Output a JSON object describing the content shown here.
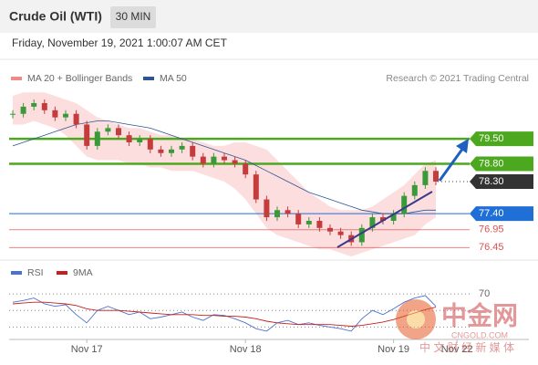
{
  "header": {
    "title": "Crude Oil (WTI)",
    "timeframe": "30 MIN",
    "timestamp": "Friday, November 19, 2021 1:00:07 AM CET"
  },
  "watermark": {
    "logo": "中金网",
    "site": "CNGOLD.COM",
    "tagline": "中 文 财 经 新 媒 体"
  },
  "chart_data": {
    "type": "candlestick",
    "credit": "Research © 2021 Trading Central",
    "categories": [
      null,
      null,
      null,
      null,
      null,
      null,
      null,
      "Nov 17",
      null,
      null,
      null,
      null,
      null,
      null,
      null,
      null,
      null,
      null,
      null,
      null,
      null,
      null,
      "Nov 18",
      null,
      null,
      null,
      null,
      null,
      null,
      null,
      null,
      null,
      null,
      null,
      null,
      null,
      "Nov 19",
      null,
      null,
      null,
      null,
      null,
      "Nov 22",
      null
    ],
    "up_color": "#3a9a3a",
    "down_color": "#c43c3c",
    "values": [
      80.2,
      80.4,
      80.5,
      80.3,
      80.1,
      80.2,
      79.9,
      79.3,
      79.7,
      79.8,
      79.6,
      79.4,
      79.5,
      79.2,
      79.1,
      79.2,
      79.3,
      79.0,
      78.8,
      79.0,
      78.9,
      78.8,
      78.5,
      77.8,
      77.3,
      77.5,
      77.4,
      77.1,
      77.2,
      77.0,
      76.9,
      76.8,
      76.6,
      77.0,
      77.3,
      77.2,
      77.4,
      77.9,
      78.2,
      78.6,
      78.3,
      null,
      null,
      null
    ],
    "series": [
      {
        "name": "MA 20 + Bollinger Bands",
        "color": "#f08a8a",
        "upper": [
          80.7,
          80.8,
          80.8,
          80.8,
          80.7,
          80.6,
          80.5,
          80.3,
          80.1,
          80.0,
          79.9,
          79.8,
          79.8,
          79.7,
          79.6,
          79.6,
          79.5,
          79.5,
          79.4,
          79.3,
          79.3,
          79.4,
          79.4,
          79.3,
          79.2,
          78.9,
          78.6,
          78.3,
          78.0,
          77.8,
          77.6,
          77.5,
          77.5,
          77.5,
          77.6,
          77.8,
          78.0,
          78.2,
          78.5,
          78.8,
          78.9,
          null,
          null,
          null
        ],
        "lower": [
          79.9,
          79.9,
          80.0,
          79.9,
          79.8,
          79.6,
          79.3,
          79.0,
          78.9,
          78.9,
          78.9,
          78.8,
          78.8,
          78.7,
          78.7,
          78.6,
          78.6,
          78.6,
          78.5,
          78.4,
          78.3,
          78.1,
          77.8,
          77.4,
          77.0,
          76.8,
          76.7,
          76.6,
          76.5,
          76.4,
          76.4,
          76.3,
          76.2,
          76.3,
          76.4,
          76.5,
          76.6,
          76.7,
          76.8,
          77.1,
          77.3,
          null,
          null,
          null
        ]
      },
      {
        "name": "MA 50",
        "color": "#2f5597",
        "values": [
          79.3,
          79.4,
          79.5,
          79.6,
          79.7,
          79.8,
          79.9,
          79.95,
          80.0,
          80.0,
          79.95,
          79.9,
          79.85,
          79.8,
          79.7,
          79.6,
          79.5,
          79.4,
          79.3,
          79.2,
          79.1,
          79.0,
          78.9,
          78.75,
          78.6,
          78.45,
          78.3,
          78.15,
          78.0,
          77.9,
          77.8,
          77.7,
          77.6,
          77.5,
          77.45,
          77.4,
          77.4,
          77.4,
          77.45,
          77.5,
          77.5,
          null,
          null,
          null
        ]
      }
    ],
    "ylim": [
      76.1,
      81.6
    ],
    "levels": [
      {
        "value": 79.5,
        "label": "79.50",
        "color": "#4ca81e",
        "style": "box"
      },
      {
        "value": 78.8,
        "label": "78.80",
        "color": "#4ca81e",
        "style": "box"
      },
      {
        "value": 78.3,
        "label": "78.30",
        "color": "#333333",
        "style": "last"
      },
      {
        "value": 77.4,
        "label": "77.40",
        "color": "#1f6fd6",
        "style": "box"
      },
      {
        "value": 76.95,
        "label": "76.95",
        "color": "#e05050",
        "style": "text"
      },
      {
        "value": 76.45,
        "label": "76.45",
        "color": "#e05050",
        "style": "text"
      }
    ],
    "rsi": {
      "series": [
        {
          "name": "RSI",
          "color": "#4a72d0",
          "values": [
            60,
            62,
            65,
            58,
            55,
            57,
            45,
            35,
            50,
            55,
            50,
            45,
            48,
            40,
            42,
            45,
            48,
            42,
            38,
            45,
            44,
            40,
            35,
            28,
            25,
            35,
            38,
            33,
            35,
            32,
            30,
            28,
            25,
            40,
            50,
            45,
            52,
            60,
            65,
            68,
            55,
            null,
            null,
            null
          ]
        },
        {
          "name": "9MA",
          "color": "#c81e1e",
          "values": [
            58,
            59,
            60,
            60,
            59,
            58,
            56,
            52,
            50,
            50,
            50,
            49,
            48,
            47,
            46,
            45,
            45,
            45,
            44,
            44,
            43,
            43,
            42,
            40,
            37,
            35,
            34,
            33,
            33,
            33,
            33,
            32,
            31,
            32,
            34,
            36,
            39,
            43,
            47,
            51,
            54,
            null,
            null,
            null
          ]
        }
      ],
      "ylim": [
        15,
        80
      ],
      "yticks": [
        70
      ],
      "grid_levels": [
        70,
        50,
        30
      ]
    }
  }
}
